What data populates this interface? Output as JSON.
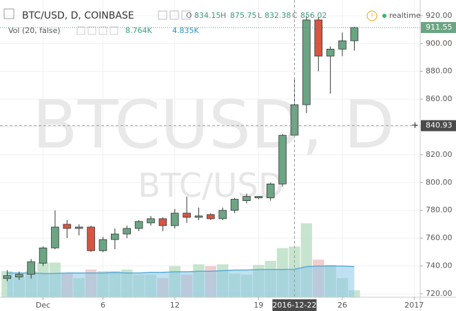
{
  "chart_data": {
    "type": "candlestick",
    "title": "BTC/USD, D, COINBASE",
    "legend": {
      "o_label": "O",
      "open": 834.15,
      "h_label": "H",
      "high": 875.75,
      "l_label": "L",
      "low": 832.38,
      "c_label": "C",
      "close": 856.02,
      "status": "realtime"
    },
    "volume_legend": {
      "title": "Vol (20, false)",
      "value": "8.764K",
      "ma": "4.835K"
    },
    "watermark": "BTCUSD, D",
    "watermark_symbol": "BTC/USD",
    "open": [
      731,
      732,
      734,
      742,
      753,
      770,
      767,
      768,
      751,
      759,
      763,
      767,
      771,
      774,
      769,
      778,
      775,
      777,
      774,
      780,
      787,
      789,
      789,
      799,
      834.15,
      856,
      917,
      891,
      896,
      902
    ],
    "high": [
      737,
      736,
      745,
      754,
      780,
      773,
      770,
      769,
      761,
      767,
      769,
      773,
      776,
      775,
      781,
      790,
      782,
      778,
      782,
      789,
      792,
      790,
      800,
      835,
      875.75,
      920,
      919,
      898,
      908,
      912
    ],
    "low": [
      729,
      730,
      731,
      740,
      752,
      760,
      762,
      750,
      750,
      752,
      760,
      765,
      769,
      765,
      767,
      771,
      773,
      773,
      773,
      778,
      785,
      788,
      787,
      797,
      832.38,
      850,
      880,
      864,
      891,
      895
    ],
    "close": [
      733,
      734,
      743,
      753,
      768,
      767,
      768,
      751,
      759,
      763,
      767,
      772,
      774,
      769,
      778,
      775,
      776,
      774,
      780,
      788,
      790,
      790,
      799,
      834,
      856.02,
      917,
      891,
      896,
      902,
      911.55
    ],
    "volume": [
      4.5,
      3.3,
      4.5,
      6.0,
      6.0,
      4.1,
      3.3,
      4.8,
      4.5,
      4.5,
      4.8,
      3.9,
      3.9,
      3.3,
      5.4,
      3.9,
      5.7,
      5.4,
      5.7,
      4.1,
      3.9,
      5.6,
      6.3,
      8.5,
      8.764,
      12.8,
      6.5,
      5.6,
      3.3,
      1.2
    ],
    "volume_ma": [
      4.2,
      4.2,
      4.2,
      4.1,
      4.1,
      4.2,
      4.2,
      4.2,
      4.2,
      4.3,
      4.2,
      4.2,
      4.3,
      4.3,
      4.4,
      4.4,
      4.5,
      4.5,
      4.6,
      4.7,
      4.7,
      4.8,
      4.8,
      4.8,
      4.835,
      5.3,
      5.4,
      5.4,
      5.4,
      5.3
    ],
    "up_color": "#6ba583",
    "down_color": "#d75442",
    "volume_up_color": "#b9dfc2",
    "volume_down_color": "#eec0c3",
    "volume_ma_color": "#8cc8e6",
    "xlim": [
      -0.6,
      34.5
    ],
    "ylim": [
      717.5,
      925.4
    ],
    "volume_ylim": [
      0,
      50
    ],
    "yticks": [
      {
        "value": 720,
        "label": "720.00"
      },
      {
        "value": 740,
        "label": "740.00"
      },
      {
        "value": 760,
        "label": "760.00"
      },
      {
        "value": 780,
        "label": "780.00"
      },
      {
        "value": 800,
        "label": "800.00"
      },
      {
        "value": 820,
        "label": "820.00"
      },
      {
        "value": 840,
        "label": "840.00"
      },
      {
        "value": 860,
        "label": "860.00"
      },
      {
        "value": 880,
        "label": "880.00"
      },
      {
        "value": 900,
        "label": "900.00"
      },
      {
        "value": 920,
        "label": "920.00"
      }
    ],
    "xticks": [
      {
        "value": 3,
        "label": "Dec"
      },
      {
        "value": 8,
        "label": "6"
      },
      {
        "value": 14,
        "label": "12"
      },
      {
        "value": 21,
        "label": "19"
      },
      {
        "value": 28,
        "label": "26"
      },
      {
        "value": 34,
        "label": "2017"
      }
    ],
    "crosshair_date": {
      "value": 24,
      "label": "2016-12-22"
    },
    "crosshair_price": 840.93,
    "last_price": 911.55,
    "grid": true
  }
}
